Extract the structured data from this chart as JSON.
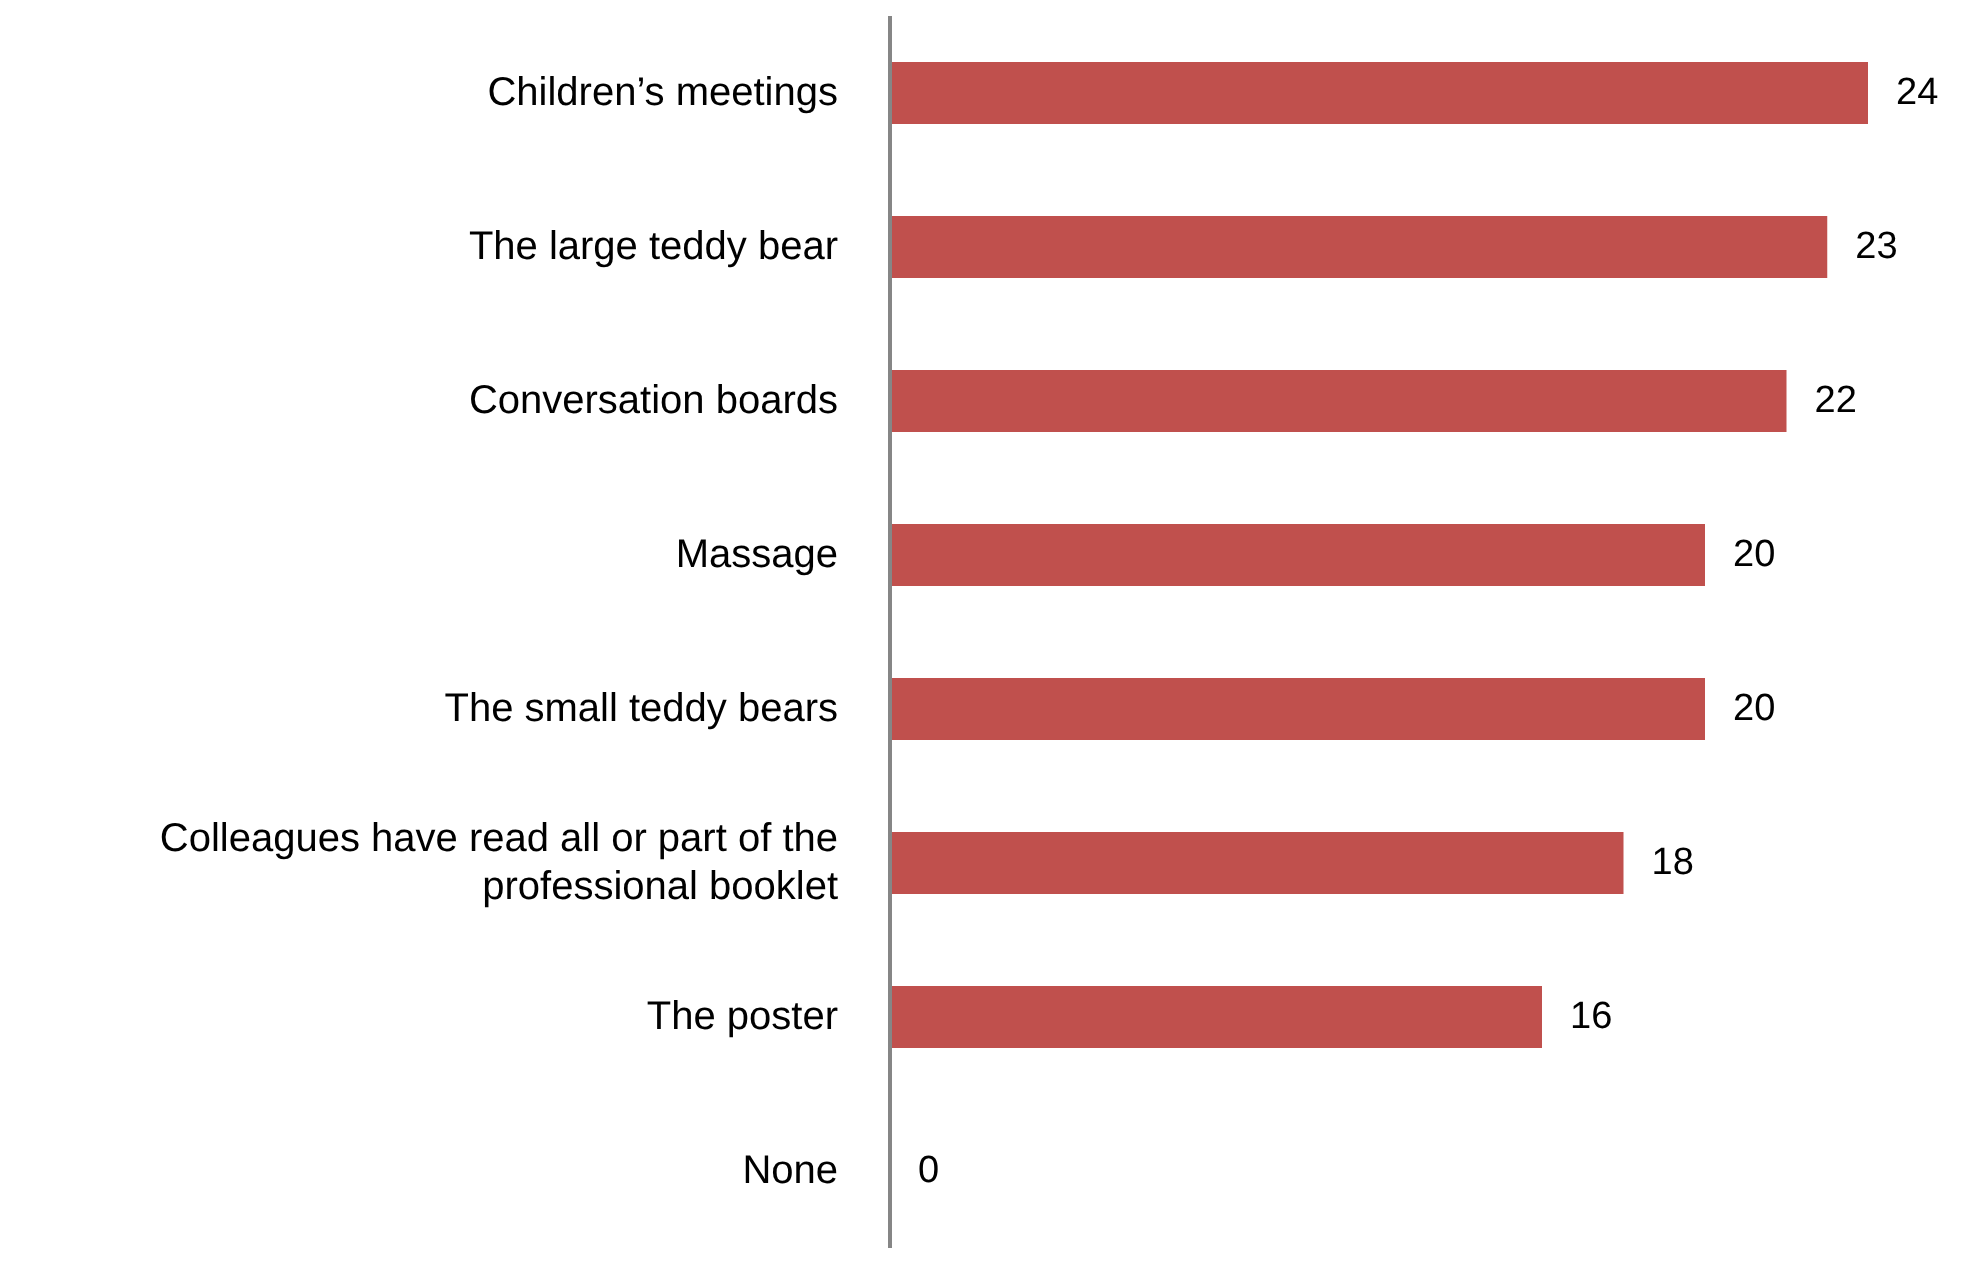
{
  "chart_data": {
    "type": "bar",
    "orientation": "horizontal",
    "categories": [
      "Children’s meetings",
      "The large teddy bear",
      "Conversation boards",
      "Massage",
      "The small teddy bears",
      "Colleagues have read all or part of the professional booklet",
      "The poster",
      "None"
    ],
    "values": [
      24,
      23,
      22,
      20,
      20,
      18,
      16,
      0
    ],
    "color": "#c0504d",
    "data_labels": true,
    "grid": false,
    "legend": false
  }
}
